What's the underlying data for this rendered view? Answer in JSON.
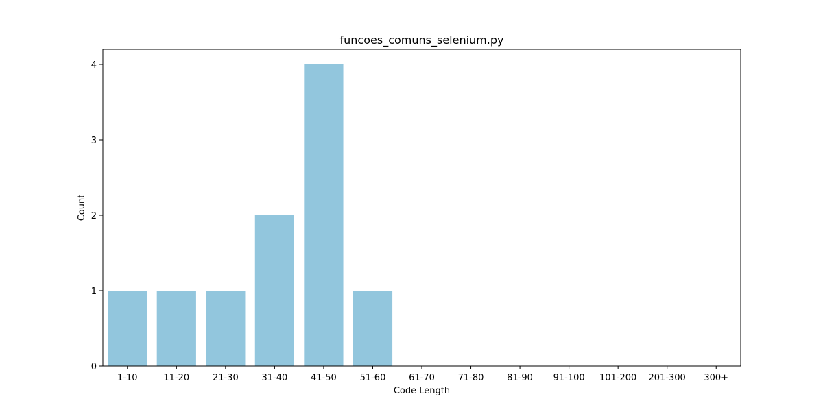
{
  "chart_data": {
    "type": "bar",
    "title": "funcoes_comuns_selenium.py",
    "xlabel": "Code Length",
    "ylabel": "Count",
    "categories": [
      "1-10",
      "11-20",
      "21-30",
      "31-40",
      "41-50",
      "51-60",
      "61-70",
      "71-80",
      "81-90",
      "91-100",
      "101-200",
      "201-300",
      "300+"
    ],
    "values": [
      1,
      1,
      1,
      2,
      4,
      1,
      0,
      0,
      0,
      0,
      0,
      0,
      0
    ],
    "ylim": [
      0,
      4.2
    ],
    "yticks": [
      0,
      1,
      2,
      3,
      4
    ],
    "bar_color": "#92c6dd",
    "grid": false,
    "legend": "none"
  }
}
